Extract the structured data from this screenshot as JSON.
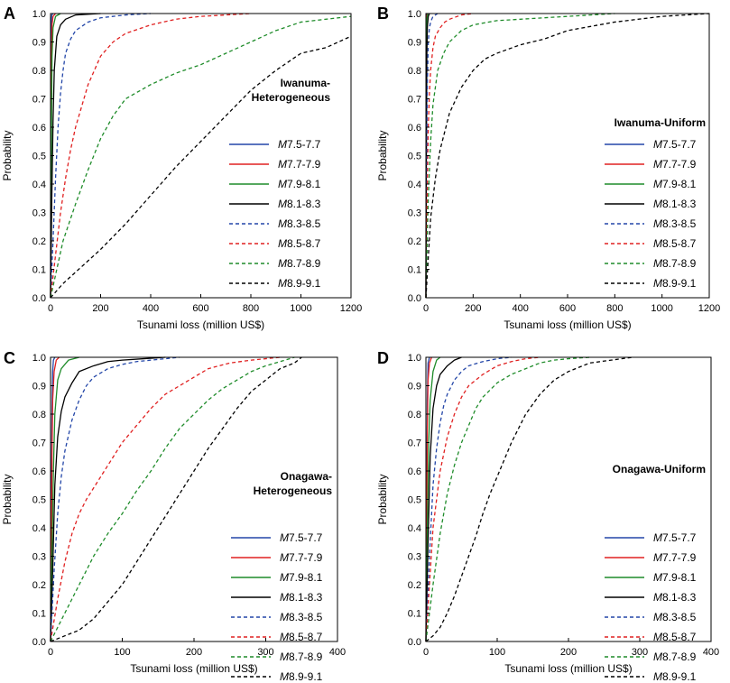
{
  "chart_data": [
    {
      "panel": "A",
      "type": "line",
      "title": "Iwanuma-\nHeterogeneous",
      "xlabel": "Tsunami loss (million US$)",
      "ylabel": "Probability",
      "xlim": [
        0,
        1200
      ],
      "ylim": [
        0,
        1.0
      ],
      "xticks": [
        0,
        200,
        400,
        600,
        800,
        1000,
        1200
      ],
      "yticks": [
        0.0,
        0.1,
        0.2,
        0.3,
        0.4,
        0.5,
        0.6,
        0.7,
        0.8,
        0.9,
        1.0
      ],
      "legend_position": "right",
      "series": [
        {
          "name": "M7.5-7.7",
          "color": "#2346a8",
          "dash": false,
          "x": [
            0,
            1,
            2,
            3,
            5,
            10
          ],
          "y": [
            0,
            0.5,
            0.85,
            0.97,
            0.995,
            1.0
          ]
        },
        {
          "name": "M7.7-7.9",
          "color": "#e02020",
          "dash": false,
          "x": [
            0,
            2,
            4,
            6,
            10,
            20
          ],
          "y": [
            0,
            0.5,
            0.85,
            0.96,
            0.99,
            1.0
          ]
        },
        {
          "name": "M7.9-8.1",
          "color": "#1f8c2a",
          "dash": false,
          "x": [
            0,
            3,
            6,
            10,
            20,
            40
          ],
          "y": [
            0,
            0.5,
            0.85,
            0.95,
            0.99,
            1.0
          ]
        },
        {
          "name": "M8.1-8.3",
          "color": "#000000",
          "dash": false,
          "x": [
            0,
            5,
            10,
            15,
            25,
            40,
            60,
            100,
            200
          ],
          "y": [
            0,
            0.35,
            0.62,
            0.8,
            0.92,
            0.96,
            0.98,
            0.995,
            1.0
          ]
        },
        {
          "name": "M8.3-8.5",
          "color": "#2346a8",
          "dash": true,
          "x": [
            0,
            10,
            20,
            30,
            40,
            50,
            60,
            80,
            100,
            150,
            200,
            300,
            400
          ],
          "y": [
            0,
            0.2,
            0.42,
            0.6,
            0.72,
            0.8,
            0.86,
            0.91,
            0.94,
            0.97,
            0.985,
            0.995,
            1.0
          ]
        },
        {
          "name": "M8.5-8.7",
          "color": "#e02020",
          "dash": true,
          "x": [
            0,
            20,
            40,
            60,
            80,
            100,
            150,
            200,
            250,
            300,
            400,
            500,
            600,
            800
          ],
          "y": [
            0,
            0.15,
            0.3,
            0.42,
            0.52,
            0.6,
            0.75,
            0.85,
            0.9,
            0.93,
            0.96,
            0.98,
            0.99,
            1.0
          ]
        },
        {
          "name": "M8.7-8.9",
          "color": "#1f8c2a",
          "dash": true,
          "x": [
            0,
            50,
            100,
            150,
            200,
            250,
            300,
            400,
            500,
            600,
            700,
            800,
            900,
            1000,
            1200
          ],
          "y": [
            0,
            0.2,
            0.33,
            0.45,
            0.56,
            0.64,
            0.7,
            0.75,
            0.79,
            0.82,
            0.86,
            0.9,
            0.94,
            0.97,
            0.99
          ]
        },
        {
          "name": "M8.9-9.1",
          "color": "#000000",
          "dash": true,
          "x": [
            0,
            50,
            100,
            200,
            300,
            400,
            500,
            600,
            700,
            800,
            900,
            1000,
            1100,
            1200
          ],
          "y": [
            0,
            0.05,
            0.09,
            0.17,
            0.26,
            0.36,
            0.46,
            0.55,
            0.64,
            0.73,
            0.8,
            0.86,
            0.88,
            0.92
          ]
        }
      ]
    },
    {
      "panel": "B",
      "type": "line",
      "title": "Iwanuma-Uniform",
      "xlabel": "Tsunami loss (million US$)",
      "ylabel": "Probability",
      "xlim": [
        0,
        1200
      ],
      "ylim": [
        0,
        1.0
      ],
      "xticks": [
        0,
        200,
        400,
        600,
        800,
        1000,
        1200
      ],
      "yticks": [
        0.0,
        0.1,
        0.2,
        0.3,
        0.4,
        0.5,
        0.6,
        0.7,
        0.8,
        0.9,
        1.0
      ],
      "legend_position": "right",
      "series": [
        {
          "name": "M7.5-7.7",
          "color": "#2346a8",
          "dash": false,
          "x": [
            0,
            1,
            2,
            3,
            5
          ],
          "y": [
            0,
            0.5,
            0.9,
            0.99,
            1.0
          ]
        },
        {
          "name": "M7.7-7.9",
          "color": "#e02020",
          "dash": false,
          "x": [
            0,
            1,
            2,
            4,
            6
          ],
          "y": [
            0,
            0.5,
            0.9,
            0.99,
            1.0
          ]
        },
        {
          "name": "M7.9-8.1",
          "color": "#1f8c2a",
          "dash": false,
          "x": [
            0,
            1,
            2,
            4,
            8
          ],
          "y": [
            0,
            0.5,
            0.88,
            0.98,
            1.0
          ]
        },
        {
          "name": "M8.1-8.3",
          "color": "#000000",
          "dash": false,
          "x": [
            0,
            2,
            4,
            6,
            10,
            15
          ],
          "y": [
            0,
            0.5,
            0.85,
            0.95,
            0.99,
            1.0
          ]
        },
        {
          "name": "M8.3-8.5",
          "color": "#2346a8",
          "dash": true,
          "x": [
            0,
            3,
            6,
            10,
            15,
            20,
            30,
            50
          ],
          "y": [
            0,
            0.45,
            0.75,
            0.9,
            0.95,
            0.97,
            0.99,
            1.0
          ]
        },
        {
          "name": "M8.5-8.7",
          "color": "#e02020",
          "dash": true,
          "x": [
            0,
            5,
            10,
            15,
            20,
            30,
            40,
            60,
            80,
            100,
            150,
            200
          ],
          "y": [
            0,
            0.35,
            0.6,
            0.72,
            0.8,
            0.88,
            0.92,
            0.95,
            0.97,
            0.98,
            0.995,
            1.0
          ]
        },
        {
          "name": "M8.7-8.9",
          "color": "#1f8c2a",
          "dash": true,
          "x": [
            0,
            10,
            20,
            30,
            50,
            75,
            100,
            150,
            200,
            300,
            400,
            500,
            600,
            800
          ],
          "y": [
            0,
            0.35,
            0.55,
            0.68,
            0.8,
            0.86,
            0.9,
            0.94,
            0.96,
            0.975,
            0.98,
            0.985,
            0.99,
            1.0
          ]
        },
        {
          "name": "M8.9-9.1",
          "color": "#000000",
          "dash": true,
          "x": [
            0,
            20,
            40,
            60,
            100,
            150,
            200,
            250,
            300,
            400,
            500,
            600,
            700,
            800,
            1000,
            1200
          ],
          "y": [
            0,
            0.28,
            0.42,
            0.52,
            0.65,
            0.74,
            0.8,
            0.84,
            0.86,
            0.89,
            0.91,
            0.94,
            0.955,
            0.97,
            0.99,
            1.0
          ]
        }
      ]
    },
    {
      "panel": "C",
      "type": "line",
      "title": "Onagawa-\nHeterogeneous",
      "xlabel": "Tsunami loss (million US$)",
      "ylabel": "Probability",
      "xlim": [
        0,
        400
      ],
      "ylim": [
        0,
        1.0
      ],
      "xticks": [
        0,
        100,
        200,
        300,
        400
      ],
      "yticks": [
        0.0,
        0.1,
        0.2,
        0.3,
        0.4,
        0.5,
        0.6,
        0.7,
        0.8,
        0.9,
        1.0
      ],
      "legend_position": "right",
      "series": [
        {
          "name": "M7.5-7.7",
          "color": "#2346a8",
          "dash": false,
          "x": [
            0,
            1,
            2,
            3,
            4,
            6
          ],
          "y": [
            0,
            0.4,
            0.8,
            0.95,
            0.99,
            1.0
          ]
        },
        {
          "name": "M7.7-7.9",
          "color": "#e02020",
          "dash": false,
          "x": [
            0,
            1,
            2,
            3,
            5,
            8,
            12
          ],
          "y": [
            0,
            0.3,
            0.65,
            0.85,
            0.95,
            0.99,
            1.0
          ]
        },
        {
          "name": "M7.9-8.1",
          "color": "#1f8c2a",
          "dash": false,
          "x": [
            0,
            2,
            4,
            6,
            10,
            15,
            25,
            40
          ],
          "y": [
            0,
            0.3,
            0.6,
            0.8,
            0.92,
            0.96,
            0.99,
            1.0
          ]
        },
        {
          "name": "M8.1-8.3",
          "color": "#000000",
          "dash": false,
          "x": [
            0,
            3,
            6,
            10,
            15,
            20,
            30,
            40,
            60,
            80,
            100,
            130,
            160
          ],
          "y": [
            0,
            0.25,
            0.55,
            0.72,
            0.81,
            0.86,
            0.91,
            0.95,
            0.97,
            0.985,
            0.99,
            0.995,
            1.0
          ]
        },
        {
          "name": "M8.3-8.5",
          "color": "#2346a8",
          "dash": true,
          "x": [
            0,
            5,
            10,
            15,
            20,
            30,
            40,
            50,
            60,
            80,
            100,
            120,
            140,
            160,
            180
          ],
          "y": [
            0,
            0.25,
            0.45,
            0.58,
            0.67,
            0.78,
            0.85,
            0.9,
            0.93,
            0.96,
            0.975,
            0.985,
            0.99,
            0.995,
            1.0
          ]
        },
        {
          "name": "M8.5-8.7",
          "color": "#e02020",
          "dash": true,
          "x": [
            0,
            10,
            20,
            30,
            40,
            50,
            60,
            70,
            80,
            100,
            120,
            140,
            160,
            180,
            200,
            220,
            250,
            280,
            320
          ],
          "y": [
            0,
            0.15,
            0.28,
            0.38,
            0.45,
            0.5,
            0.54,
            0.58,
            0.62,
            0.7,
            0.76,
            0.82,
            0.87,
            0.9,
            0.93,
            0.96,
            0.98,
            0.99,
            1.0
          ]
        },
        {
          "name": "M8.7-8.9",
          "color": "#1f8c2a",
          "dash": true,
          "x": [
            0,
            10,
            20,
            30,
            40,
            50,
            60,
            80,
            100,
            120,
            140,
            160,
            180,
            200,
            220,
            240,
            260,
            280,
            300,
            340
          ],
          "y": [
            0,
            0.05,
            0.1,
            0.15,
            0.2,
            0.25,
            0.3,
            0.38,
            0.45,
            0.53,
            0.6,
            0.68,
            0.75,
            0.8,
            0.85,
            0.89,
            0.92,
            0.95,
            0.97,
            1.0
          ]
        },
        {
          "name": "M8.9-9.1",
          "color": "#000000",
          "dash": true,
          "x": [
            0,
            20,
            40,
            60,
            80,
            100,
            120,
            140,
            160,
            180,
            200,
            220,
            240,
            260,
            280,
            300,
            320,
            340,
            350
          ],
          "y": [
            0,
            0.02,
            0.04,
            0.08,
            0.14,
            0.2,
            0.28,
            0.36,
            0.44,
            0.52,
            0.6,
            0.68,
            0.75,
            0.82,
            0.88,
            0.92,
            0.96,
            0.98,
            1.0
          ]
        }
      ]
    },
    {
      "panel": "D",
      "type": "line",
      "title": "Onagawa-Uniform",
      "xlabel": "Tsunami loss (million US$)",
      "ylabel": "Probability",
      "xlim": [
        0,
        400
      ],
      "ylim": [
        0,
        1.0
      ],
      "xticks": [
        0,
        100,
        200,
        300,
        400
      ],
      "yticks": [
        0.0,
        0.1,
        0.2,
        0.3,
        0.4,
        0.5,
        0.6,
        0.7,
        0.8,
        0.9,
        1.0
      ],
      "legend_position": "right",
      "series": [
        {
          "name": "M7.5-7.7",
          "color": "#2346a8",
          "dash": false,
          "x": [
            0,
            1,
            2,
            3,
            5
          ],
          "y": [
            0,
            0.5,
            0.85,
            0.98,
            1.0
          ]
        },
        {
          "name": "M7.7-7.9",
          "color": "#e02020",
          "dash": false,
          "x": [
            0,
            1,
            2,
            3,
            5,
            8
          ],
          "y": [
            0,
            0.4,
            0.75,
            0.92,
            0.98,
            1.0
          ]
        },
        {
          "name": "M7.9-8.1",
          "color": "#1f8c2a",
          "dash": false,
          "x": [
            0,
            2,
            4,
            6,
            10,
            15,
            20
          ],
          "y": [
            0,
            0.4,
            0.7,
            0.85,
            0.95,
            0.99,
            1.0
          ]
        },
        {
          "name": "M8.1-8.3",
          "color": "#000000",
          "dash": false,
          "x": [
            0,
            3,
            6,
            10,
            15,
            20,
            30,
            40,
            50
          ],
          "y": [
            0,
            0.35,
            0.65,
            0.82,
            0.9,
            0.94,
            0.97,
            0.99,
            1.0
          ]
        },
        {
          "name": "M8.3-8.5",
          "color": "#2346a8",
          "dash": true,
          "x": [
            0,
            5,
            10,
            15,
            20,
            25,
            30,
            40,
            50,
            60,
            80,
            100,
            120
          ],
          "y": [
            0,
            0.3,
            0.55,
            0.68,
            0.77,
            0.83,
            0.87,
            0.92,
            0.95,
            0.97,
            0.985,
            0.995,
            1.0
          ]
        },
        {
          "name": "M8.5-8.7",
          "color": "#e02020",
          "dash": true,
          "x": [
            0,
            5,
            10,
            20,
            30,
            40,
            50,
            60,
            70,
            80,
            100,
            120,
            140,
            160
          ],
          "y": [
            0,
            0.2,
            0.4,
            0.6,
            0.72,
            0.8,
            0.86,
            0.9,
            0.92,
            0.94,
            0.97,
            0.985,
            0.995,
            1.0
          ]
        },
        {
          "name": "M8.7-8.9",
          "color": "#1f8c2a",
          "dash": true,
          "x": [
            0,
            10,
            20,
            30,
            40,
            50,
            60,
            70,
            80,
            100,
            120,
            140,
            160,
            180,
            200,
            230
          ],
          "y": [
            0,
            0.2,
            0.38,
            0.52,
            0.62,
            0.7,
            0.76,
            0.82,
            0.86,
            0.91,
            0.94,
            0.96,
            0.98,
            0.99,
            0.995,
            1.0
          ]
        },
        {
          "name": "M8.9-9.1",
          "color": "#000000",
          "dash": true,
          "x": [
            0,
            10,
            20,
            30,
            40,
            50,
            60,
            70,
            80,
            90,
            100,
            120,
            140,
            160,
            180,
            200,
            230,
            260,
            290
          ],
          "y": [
            0,
            0.02,
            0.05,
            0.1,
            0.16,
            0.23,
            0.3,
            0.37,
            0.45,
            0.52,
            0.58,
            0.7,
            0.8,
            0.87,
            0.92,
            0.95,
            0.98,
            0.99,
            1.0
          ]
        }
      ]
    }
  ]
}
